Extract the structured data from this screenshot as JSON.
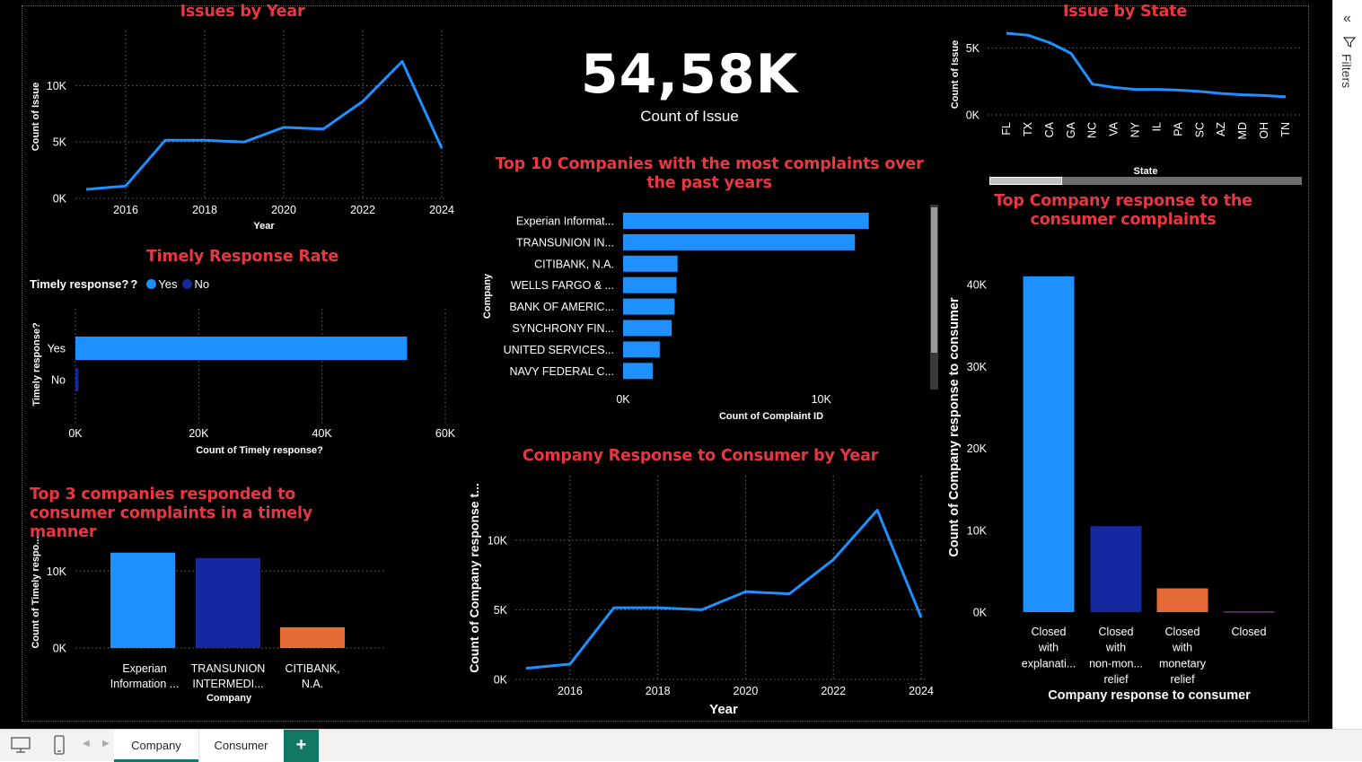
{
  "kpi": {
    "value": "54,58K",
    "label": "Count of Issue"
  },
  "legend": {
    "title": "Timely response?",
    "items": [
      {
        "label": "Yes",
        "color": "#1e90ff"
      },
      {
        "label": "No",
        "color": "#1428a0"
      }
    ]
  },
  "sidebar": {
    "filters_label": "Filters"
  },
  "tabs": {
    "items": [
      "Company",
      "Consumer"
    ],
    "add_label": "+"
  },
  "chart_data": [
    {
      "id": "issues_by_year",
      "type": "line",
      "title": "Issues by Year",
      "xlabel": "Year",
      "ylabel": "Count of Issue",
      "x": [
        2015,
        2016,
        2017,
        2018,
        2019,
        2020,
        2021,
        2022,
        2023,
        2024
      ],
      "values": [
        800,
        1100,
        5150,
        5150,
        5000,
        6300,
        6150,
        8600,
        12150,
        4450
      ],
      "xticks": [
        2016,
        2018,
        2020,
        2022,
        2024
      ],
      "yticks": [
        {
          "v": 0,
          "label": "0K"
        },
        {
          "v": 5000,
          "label": "5K"
        },
        {
          "v": 10000,
          "label": "10K"
        }
      ],
      "xlim": [
        2015,
        2024
      ],
      "ylim": [
        0,
        12500
      ],
      "color": "#1e90ff"
    },
    {
      "id": "timely_response_rate",
      "type": "bar",
      "orientation": "horizontal",
      "title": "Timely Response Rate",
      "xlabel": "Count of Timely response?",
      "ylabel": "Timely response?",
      "categories": [
        "Yes",
        "No"
      ],
      "values": [
        53800,
        500
      ],
      "colors": [
        "#1e90ff",
        "#1428a0"
      ],
      "xticks": [
        {
          "v": 0,
          "label": "0K"
        },
        {
          "v": 20000,
          "label": "20K"
        },
        {
          "v": 40000,
          "label": "40K"
        },
        {
          "v": 60000,
          "label": "60K"
        }
      ],
      "xlim": [
        0,
        60000
      ]
    },
    {
      "id": "top3_timely",
      "type": "bar",
      "title": "Top 3 companies responded to consumer complaints in a timely manner",
      "xlabel": "Company",
      "ylabel": "Count of Timely respo...",
      "categories": [
        [
          "Experian",
          "Information ..."
        ],
        [
          "TRANSUNION",
          "INTERMEDI..."
        ],
        [
          "CITIBANK,",
          "N.A."
        ]
      ],
      "values": [
        12400,
        11700,
        2700
      ],
      "colors": [
        "#1e90ff",
        "#1428a0",
        "#e66c37"
      ],
      "yticks": [
        {
          "v": 0,
          "label": "0K"
        },
        {
          "v": 10000,
          "label": "10K"
        }
      ],
      "ylim": [
        0,
        14000
      ]
    },
    {
      "id": "top10_companies",
      "type": "bar",
      "orientation": "horizontal",
      "title": "Top 10 Companies with the most complaints over the past years",
      "xlabel": "Count of Complaint ID",
      "ylabel": "Company",
      "categories": [
        "Experian Informat...",
        "TRANSUNION IN...",
        "CITIBANK, N.A.",
        "WELLS FARGO & ...",
        "BANK OF AMERIC...",
        "SYNCHRONY FIN...",
        "UNITED SERVICES...",
        "NAVY FEDERAL C..."
      ],
      "values": [
        12400,
        11700,
        2750,
        2700,
        2600,
        2450,
        1850,
        1500
      ],
      "xticks": [
        {
          "v": 0,
          "label": "0K"
        },
        {
          "v": 10000,
          "label": "10K"
        }
      ],
      "xlim": [
        0,
        14500
      ],
      "color": "#1e90ff"
    },
    {
      "id": "response_by_year",
      "type": "line",
      "title": "Company Response to Consumer by Year",
      "xlabel": "Year",
      "ylabel": "Count of Company response t...",
      "x": [
        2015,
        2016,
        2017,
        2018,
        2019,
        2020,
        2021,
        2022,
        2023,
        2024
      ],
      "values": [
        800,
        1100,
        5150,
        5150,
        5000,
        6300,
        6150,
        8600,
        12150,
        4450
      ],
      "xticks": [
        2016,
        2018,
        2020,
        2022,
        2024
      ],
      "yticks": [
        {
          "v": 0,
          "label": "0K"
        },
        {
          "v": 5000,
          "label": "5K"
        },
        {
          "v": 10000,
          "label": "10K"
        }
      ],
      "xlim": [
        2015,
        2024
      ],
      "ylim": [
        0,
        12500
      ],
      "color": "#1e90ff"
    },
    {
      "id": "issue_by_state",
      "type": "line",
      "title": "Issue by State",
      "xlabel": "State",
      "ylabel": "Count of Issue",
      "categories": [
        "FL",
        "TX",
        "CA",
        "GA",
        "NC",
        "VA",
        "NY",
        "IL",
        "PA",
        "SC",
        "AZ",
        "MD",
        "OH",
        "TN"
      ],
      "values": [
        6100,
        5950,
        5400,
        4600,
        2300,
        2050,
        1900,
        1900,
        1850,
        1750,
        1600,
        1500,
        1450,
        1350
      ],
      "yticks": [
        {
          "v": 0,
          "label": "0K"
        },
        {
          "v": 5000,
          "label": "5K"
        }
      ],
      "ylim": [
        0,
        6500
      ],
      "color": "#1e90ff"
    },
    {
      "id": "top_response",
      "type": "bar",
      "title": "Top Company response to the consumer complaints",
      "xlabel": "Company response to consumer",
      "ylabel": "Count of Company response to consumer",
      "categories": [
        [
          "Closed",
          "with",
          "explanati..."
        ],
        [
          "Closed",
          "with",
          "non-mon...",
          "relief"
        ],
        [
          "Closed",
          "with",
          "monetary",
          "relief"
        ],
        [
          "Closed"
        ]
      ],
      "values": [
        41000,
        10500,
        2900,
        100
      ],
      "colors": [
        "#1e90ff",
        "#1428a0",
        "#e66c37",
        "#7b2a8c"
      ],
      "yticks": [
        {
          "v": 0,
          "label": "0K"
        },
        {
          "v": 10000,
          "label": "10K"
        },
        {
          "v": 20000,
          "label": "20K"
        },
        {
          "v": 30000,
          "label": "30K"
        },
        {
          "v": 40000,
          "label": "40K"
        }
      ],
      "ylim": [
        0,
        42000
      ]
    }
  ]
}
